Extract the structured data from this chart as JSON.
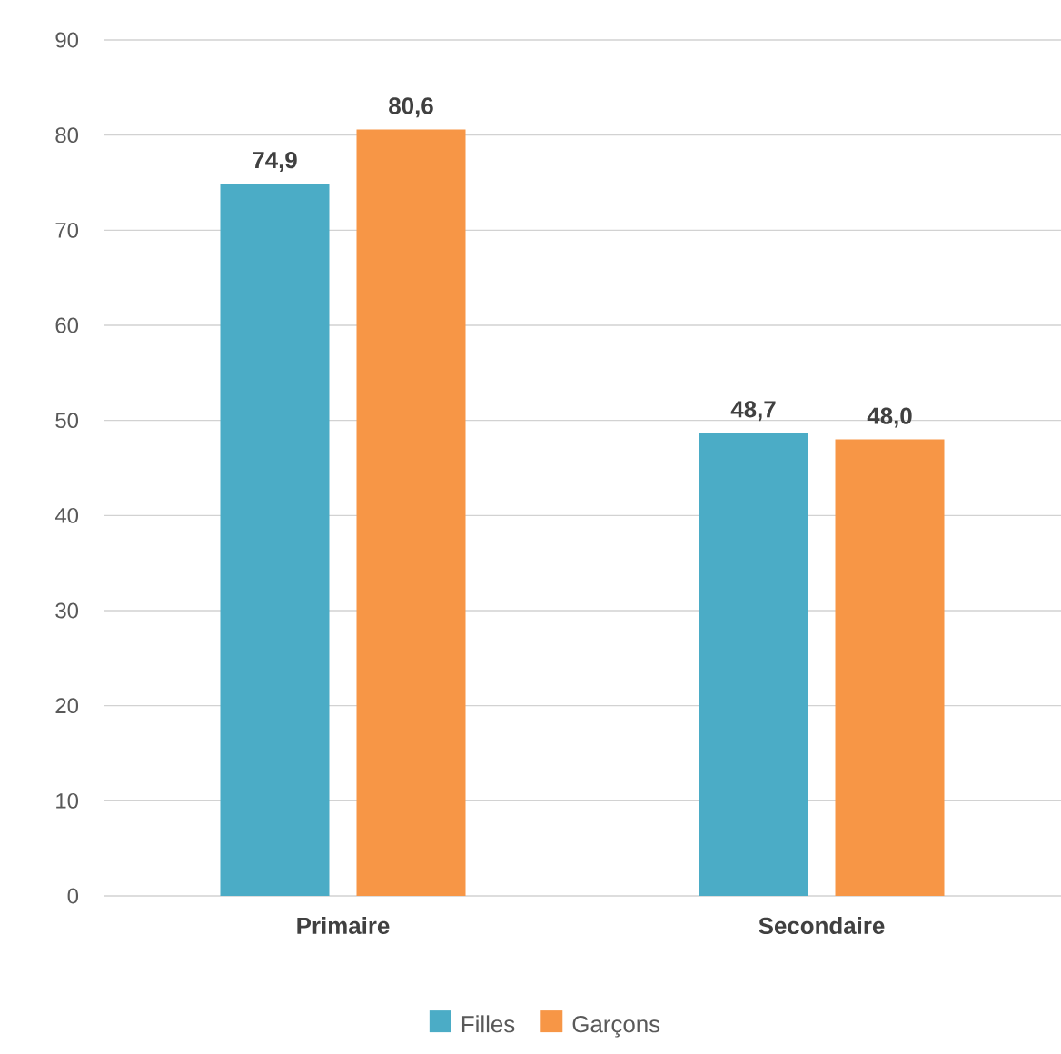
{
  "chart_data": {
    "type": "bar",
    "categories": [
      "Primaire",
      "Secondaire"
    ],
    "series": [
      {
        "name": "Filles",
        "color": "#4bacc6",
        "values": [
          74.9,
          48.7
        ],
        "value_labels": [
          "74,9",
          "48,7"
        ]
      },
      {
        "name": "Garçons",
        "color": "#f79646",
        "values": [
          80.6,
          48.0
        ],
        "value_labels": [
          "80,6",
          "48,0"
        ]
      }
    ],
    "ylim": [
      0,
      90
    ],
    "yticks": [
      0,
      10,
      20,
      30,
      40,
      50,
      60,
      70,
      80,
      90
    ],
    "grid": "y",
    "legend": "bottom"
  }
}
